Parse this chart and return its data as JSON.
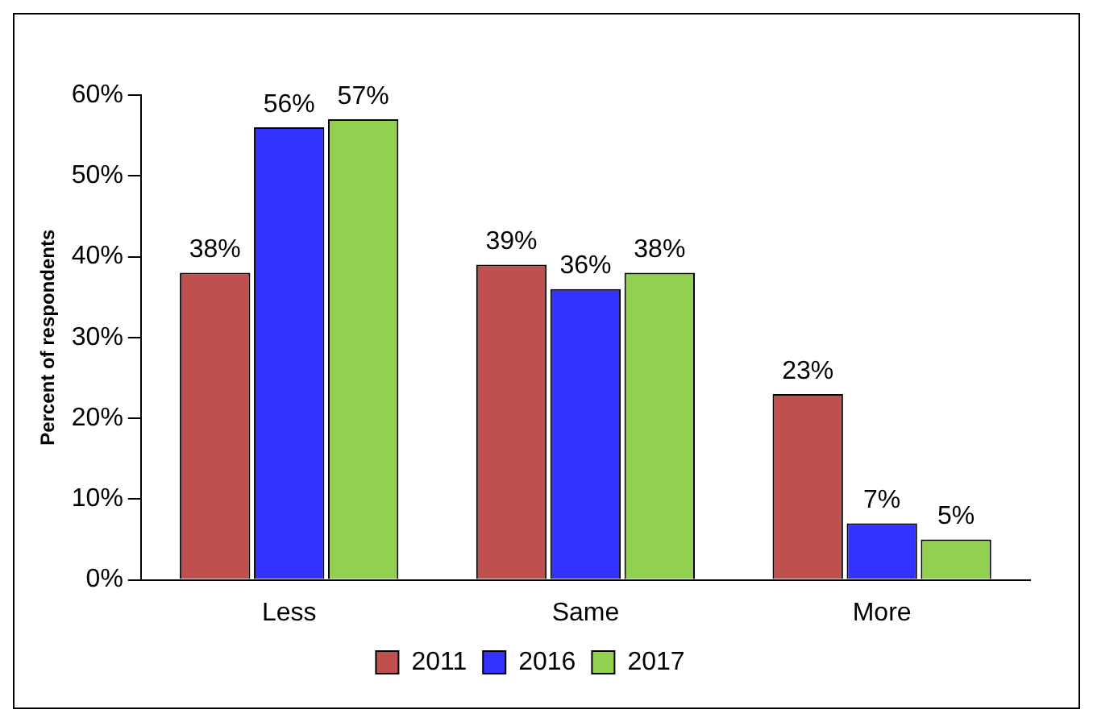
{
  "chart_data": {
    "type": "bar",
    "ylabel": "Percent of respondents",
    "categories": [
      "Less",
      "Same",
      "More"
    ],
    "series": [
      {
        "name": "2011",
        "color": "#c0504d",
        "values": [
          38,
          39,
          23
        ],
        "value_labels": [
          "38%",
          "39%",
          "23%"
        ]
      },
      {
        "name": "2016",
        "color": "#3333ff",
        "values": [
          56,
          36,
          7
        ],
        "value_labels": [
          "56%",
          "36%",
          "7%"
        ]
      },
      {
        "name": "2017",
        "color": "#92d050",
        "values": [
          57,
          38,
          5
        ],
        "value_labels": [
          "57%",
          "38%",
          "5%"
        ]
      }
    ],
    "ylim": [
      0,
      60
    ],
    "yticks": [
      {
        "value": 0,
        "label": "0%"
      },
      {
        "value": 10,
        "label": "10%"
      },
      {
        "value": 20,
        "label": "20%"
      },
      {
        "value": 30,
        "label": "30%"
      },
      {
        "value": 40,
        "label": "40%"
      },
      {
        "value": 50,
        "label": "50%"
      },
      {
        "value": 60,
        "label": "60%"
      }
    ],
    "grid": false,
    "legend": "bottom"
  }
}
